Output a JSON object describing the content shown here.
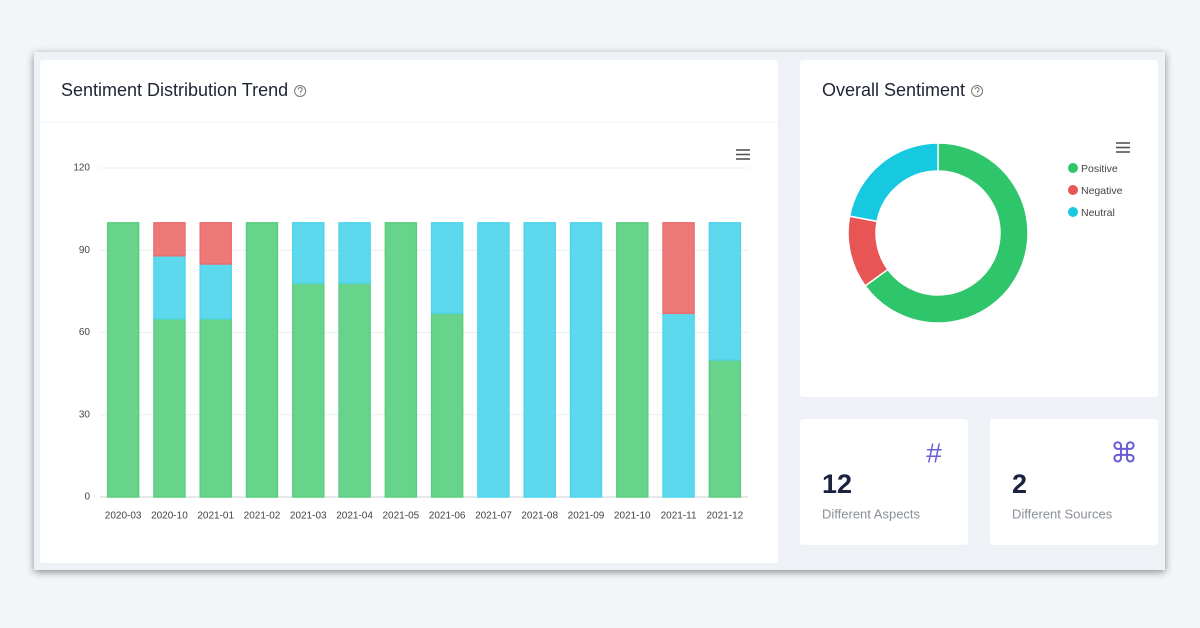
{
  "chart_data": [
    {
      "type": "bar",
      "stacked": true,
      "title": "Sentiment Distribution Trend",
      "categories": [
        "2020-03",
        "2020-10",
        "2021-01",
        "2021-02",
        "2021-03",
        "2021-04",
        "2021-05",
        "2021-06",
        "2021-07",
        "2021-08",
        "2021-09",
        "2021-10",
        "2021-11",
        "2021-12"
      ],
      "series": [
        {
          "color": "#5bcf80",
          "values": [
            100,
            65,
            65,
            100,
            78,
            78,
            100,
            67,
            0,
            0,
            0,
            100,
            0,
            50
          ]
        },
        {
          "color": "#4fd5ea",
          "values": [
            0,
            23,
            20,
            0,
            22,
            22,
            0,
            33,
            100,
            100,
            100,
            0,
            67,
            50
          ]
        },
        {
          "color": "#ec6e6e",
          "values": [
            0,
            12,
            15,
            0,
            0,
            0,
            0,
            0,
            0,
            0,
            0,
            0,
            33,
            0
          ]
        }
      ],
      "ylim": [
        0,
        120
      ],
      "yticks": [
        0,
        30,
        60,
        90,
        120
      ],
      "grid": true
    },
    {
      "type": "pie",
      "title": "Overall Sentiment",
      "categories": [
        "Positive",
        "Negative",
        "Neutral"
      ],
      "values": [
        65,
        13,
        22
      ],
      "colors": [
        "#2ec56b",
        "#e85555",
        "#16c9e0"
      ],
      "legend": "right"
    }
  ],
  "stats": [
    {
      "icon": "#",
      "value": 12,
      "label": "Different Aspects"
    },
    {
      "icon": "⌘",
      "value": 2,
      "label": "Different Sources"
    }
  ]
}
